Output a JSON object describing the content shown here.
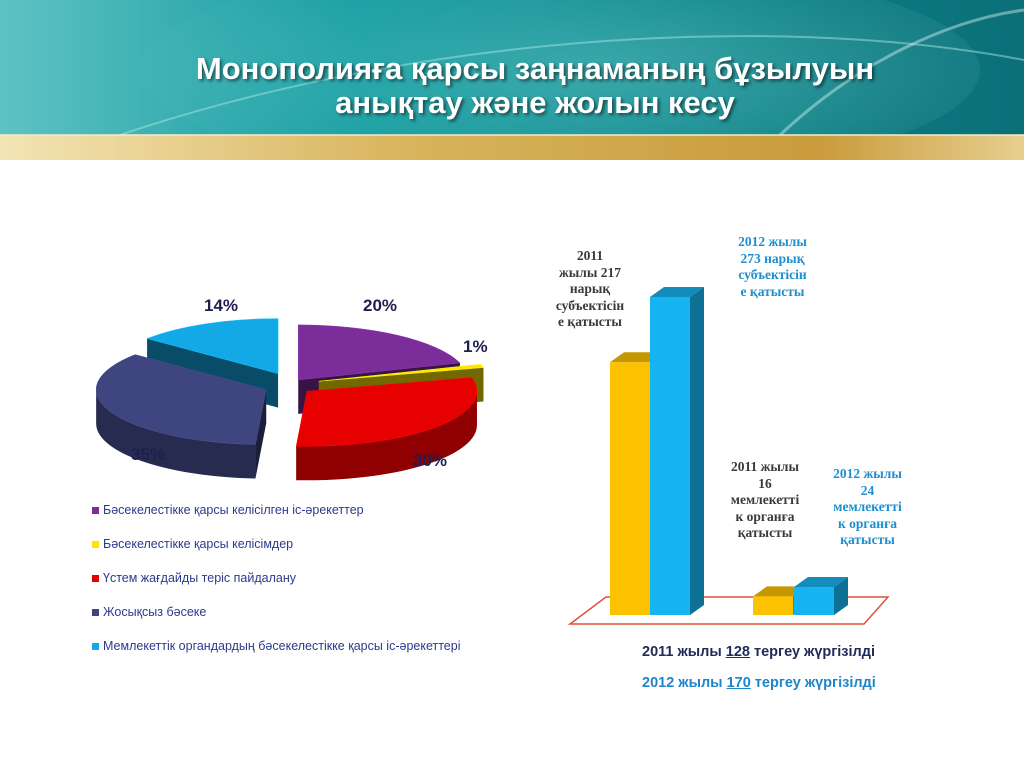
{
  "title_lines": [
    "Монополияға қарсы заңнаманың бұзылуын",
    "анықтау  және  жолын кесу"
  ],
  "colors": {
    "purple": "#7b2d9a",
    "yellow": "#ffe600",
    "red": "#e60000",
    "navy": "#3f457f",
    "cyan": "#12a9e6",
    "bar_2011": "#fcc200",
    "bar_2012": "#16b4f0",
    "banner_teal": "#0c8c8f",
    "banner_gold": "#d4b15a"
  },
  "chart_data": [
    {
      "type": "pie",
      "slices": [
        {
          "label": "Бәсекелестікке қарсы келісілген іс-әрекеттер",
          "value": 20,
          "pct_label": "20%",
          "color": "#7b2d9a"
        },
        {
          "label": "Бәсекелестікке қарсы келісімдер",
          "value": 1,
          "pct_label": "1%",
          "color": "#ffe600"
        },
        {
          "label": "Үстем жағдайды теріс пайдалану",
          "value": 30,
          "pct_label": "30%",
          "color": "#e60000"
        },
        {
          "label": "Жосықсыз бәсеке",
          "value": 35,
          "pct_label": "35%",
          "color": "#3f457f"
        },
        {
          "label": "Мемлекеттік органдардың бәсекелестікке қарсы іс-әрекеттері",
          "value": 14,
          "pct_label": "14%",
          "color": "#12a9e6"
        }
      ]
    },
    {
      "type": "bar",
      "groups": [
        {
          "values": [
            217,
            273
          ]
        },
        {
          "values": [
            16,
            24
          ]
        }
      ],
      "series_colors": [
        "#fcc200",
        "#16b4f0"
      ],
      "annotations": [
        {
          "text": [
            "2011",
            "жылы 217",
            "нарық",
            "субъектісін",
            "е қатысты"
          ],
          "style": "dark"
        },
        {
          "text": [
            "2012 жылы",
            "273 нарық",
            "субъектісін",
            "е қатысты"
          ],
          "style": "blue"
        },
        {
          "text": [
            "2011 жылы",
            "16",
            "мемлекетті",
            "к органға",
            "қатысты"
          ],
          "style": "dark"
        },
        {
          "text": [
            "2012 жылы",
            "24",
            "мемлекетті",
            "к органға",
            "қатысты"
          ],
          "style": "blue"
        }
      ]
    }
  ],
  "summary": [
    {
      "prefix": "2011 жылы ",
      "num": "128",
      "suffix": " тергеу жүргізілді"
    },
    {
      "prefix": "2012 жылы ",
      "num": "170",
      "suffix": " тергеу жүргізілді"
    }
  ]
}
